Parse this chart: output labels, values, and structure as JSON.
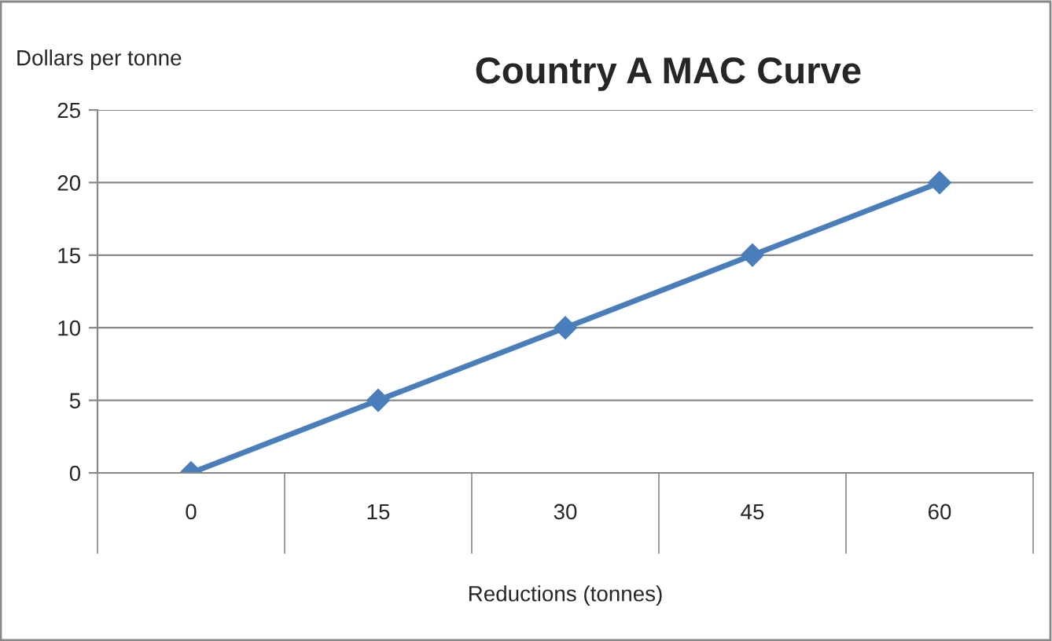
{
  "chart_data": {
    "type": "line",
    "title": "Country A MAC Curve",
    "xlabel": "Reductions (tonnes)",
    "ylabel": "Dollars per tonne",
    "categories": [
      "0",
      "15",
      "30",
      "45",
      "60"
    ],
    "series": [
      {
        "color": "#4a7ebb",
        "values": [
          0,
          5,
          10,
          15,
          20
        ]
      }
    ],
    "ylim": [
      0,
      25
    ],
    "yticks": [
      0,
      5,
      10,
      15,
      20,
      25
    ],
    "grid": "y",
    "marker": "diamond",
    "line_style": "solid"
  }
}
